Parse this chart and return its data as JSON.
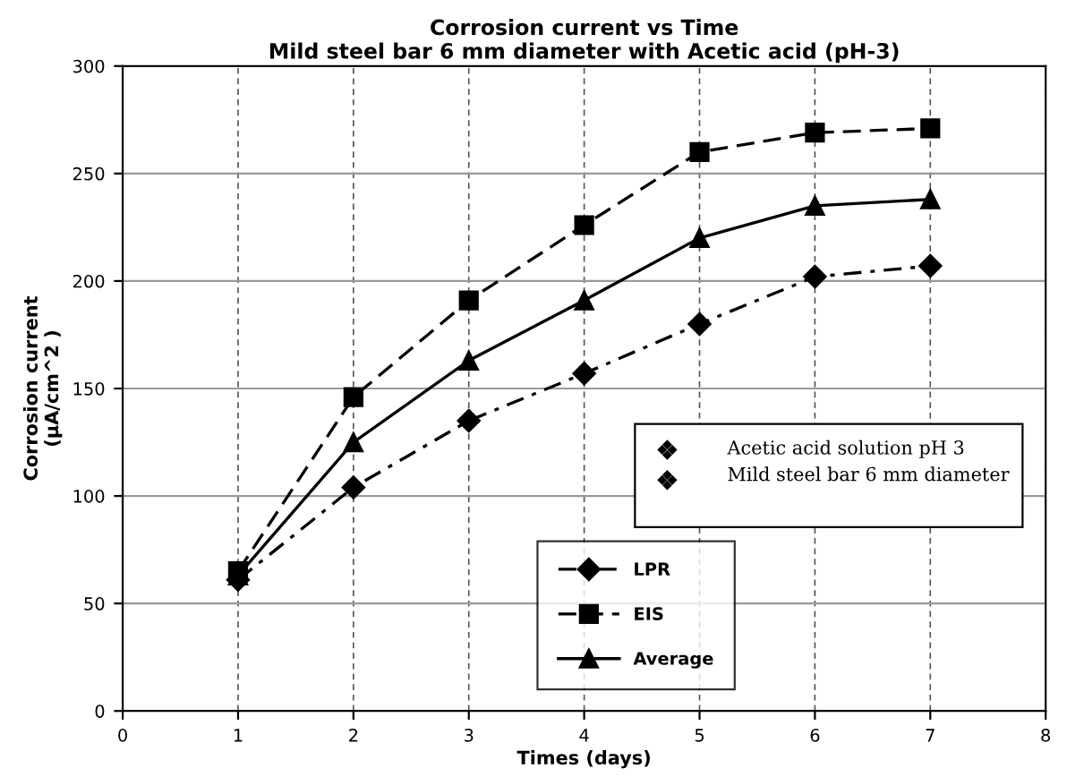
{
  "chart_data": {
    "type": "line",
    "title": "Corrosion current vs Time\nMild steel bar 6 mm diameter with Acetic acid (pH-3)",
    "xlabel": "Times (days)",
    "ylabel": "Corrosion current\n(μA/cm^2 )",
    "x": [
      1,
      2,
      3,
      4,
      5,
      6,
      7
    ],
    "series": [
      {
        "name": "LPR",
        "color": "#000000",
        "marker": "diamond",
        "line_style": "dashdot",
        "values": [
          61,
          104,
          135,
          157,
          180,
          202,
          207
        ]
      },
      {
        "name": "EIS",
        "color": "#000000",
        "marker": "square",
        "line_style": "dashed",
        "values": [
          65,
          146,
          191,
          226,
          260,
          269,
          271
        ]
      },
      {
        "name": "Average",
        "color": "#000000",
        "marker": "triangle",
        "line_style": "solid",
        "values": [
          63,
          125,
          163,
          191,
          220,
          235,
          238
        ]
      }
    ],
    "xlim": [
      0,
      8
    ],
    "xticks": [
      0,
      1,
      2,
      3,
      4,
      5,
      6,
      7,
      8
    ],
    "ylim": [
      0,
      300
    ],
    "yticks": [
      0,
      50,
      100,
      150,
      200,
      250,
      300
    ],
    "grid": true,
    "legend": "bottom right",
    "annotations": [
      "Acetic acid solution pH 3",
      "Mild steel bar 6 mm diameter"
    ]
  }
}
